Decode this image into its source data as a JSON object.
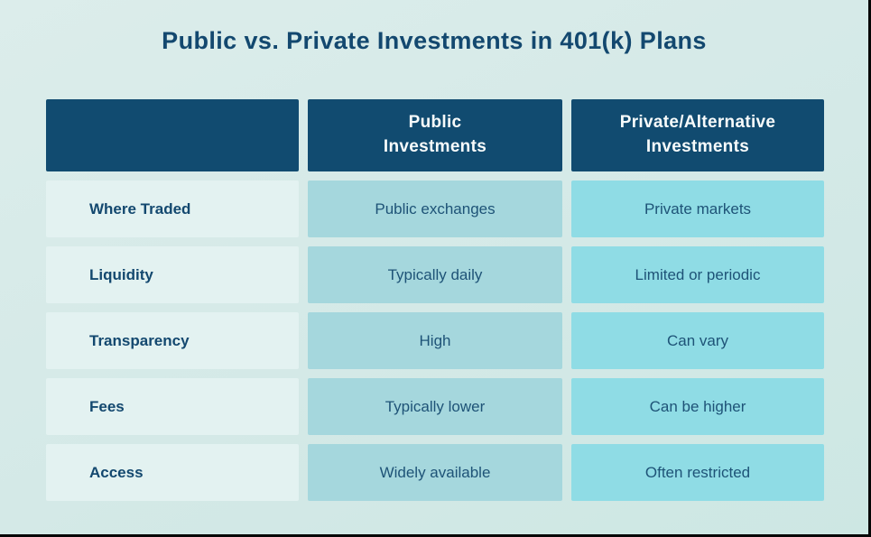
{
  "page": {
    "title": "Public vs. Private Investments in 401(k) Plans"
  },
  "colors": {
    "background": "#d4e9e7",
    "header_bg": "#114b70",
    "header_text": "#ffffff",
    "label_cell_bg": "#e3f2f1",
    "public_cell_bg": "#a5d7dd",
    "private_cell_bg": "#8fdce5",
    "text_navy": "#13486f",
    "value_text": "#1e5377",
    "edge_border": "#060606"
  },
  "table": {
    "headers": {
      "empty": "",
      "public": "Public\nInvestments",
      "private": "Private/Alternative\nInvestments"
    },
    "rows": [
      {
        "label": "Where Traded",
        "public": "Public exchanges",
        "private": "Private markets"
      },
      {
        "label": "Liquidity",
        "public": "Typically daily",
        "private": "Limited or periodic"
      },
      {
        "label": "Transparency",
        "public": "High",
        "private": "Can vary"
      },
      {
        "label": "Fees",
        "public": "Typically lower",
        "private": "Can be higher"
      },
      {
        "label": "Access",
        "public": "Widely available",
        "private": "Often restricted"
      }
    ]
  }
}
